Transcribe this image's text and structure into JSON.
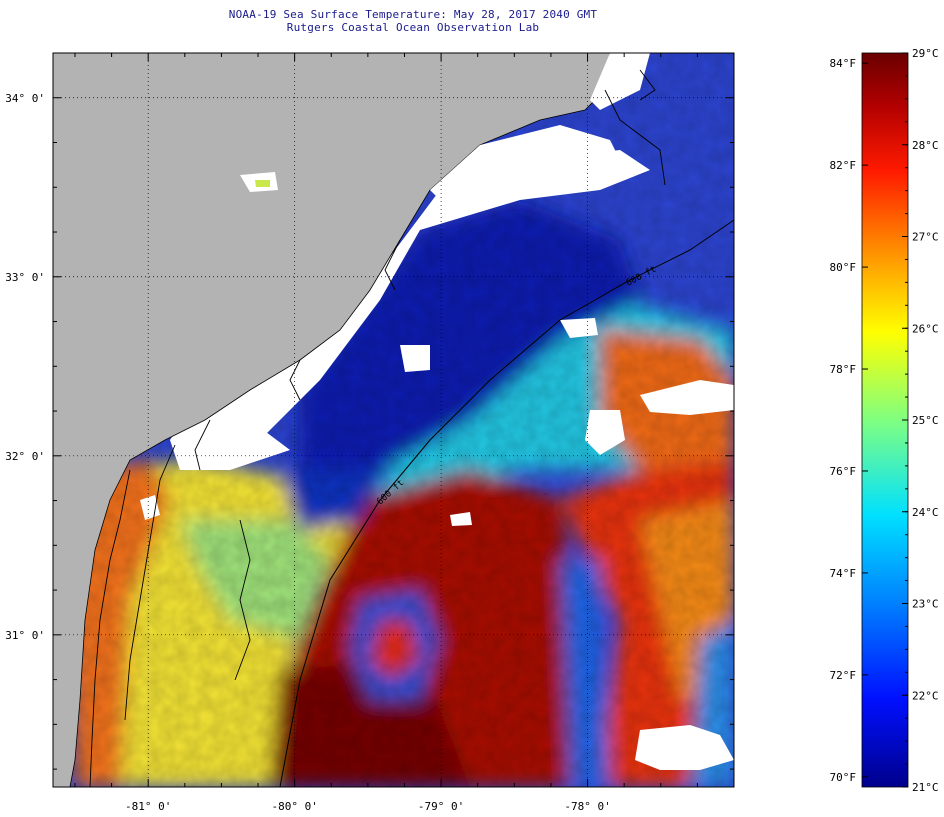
{
  "title": {
    "line1": "NOAA-19 Sea Surface Temperature:  May 28, 2017 2040 GMT",
    "line2": "Rutgers Coastal Ocean Observation Lab"
  },
  "map": {
    "lon_range": [
      -81.65,
      -77.0
    ],
    "lat_range": [
      30.15,
      34.25
    ],
    "lon_ticks": [
      {
        "value": -81,
        "label": "-81° 0'"
      },
      {
        "value": -80,
        "label": "-80° 0'"
      },
      {
        "value": -79,
        "label": "-79° 0'"
      },
      {
        "value": -78,
        "label": "-78° 0'"
      }
    ],
    "lat_ticks": [
      {
        "value": 34,
        "label": "34° 0'"
      },
      {
        "value": 33,
        "label": "33° 0'"
      },
      {
        "value": 32,
        "label": "32° 0'"
      },
      {
        "value": 31,
        "label": "31° 0'"
      }
    ],
    "isobath_labels": [
      "600 ft",
      "600 ft"
    ],
    "colors": {
      "land": "#b3b3b3",
      "cloud": "#ffffff",
      "coast": "#000000",
      "cold_water": "#0a1fb0",
      "cool_water": "#25c4e6",
      "mid_water": "#f6ea2a",
      "warm_water": "#f76b10",
      "hot_water": "#7a0400"
    }
  },
  "colorbar": {
    "celsius_labels": [
      "29°C",
      "28°C",
      "27°C",
      "26°C",
      "25°C",
      "24°C",
      "23°C",
      "22°C",
      "21°C"
    ],
    "fahrenheit_labels": [
      "84°F",
      "82°F",
      "80°F",
      "78°F",
      "76°F",
      "74°F",
      "72°F",
      "70°F"
    ],
    "celsius_range": [
      21,
      29
    ],
    "fahrenheit_range": [
      70,
      84
    ]
  }
}
